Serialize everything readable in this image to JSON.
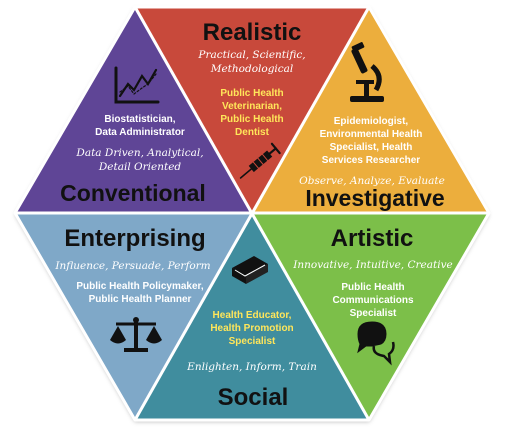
{
  "colors": {
    "realistic": "#c8493a",
    "investigative": "#ecae3e",
    "artistic": "#7bbf4a",
    "social": "#3f8d9e",
    "enterprising": "#7fa8c8",
    "conventional": "#5e4596",
    "border": "#ffffff",
    "title_text": "#111111",
    "job_highlight": "#ffe65a"
  },
  "sections": {
    "realistic": {
      "title": "Realistic",
      "traits": [
        "Practical, Scientific,",
        "Methodological"
      ],
      "jobs": [
        "Public Health",
        "Veterinarian,",
        "Public Health",
        "Dentist"
      ],
      "icon": "syringe-icon"
    },
    "investigative": {
      "title": "Investigative",
      "traits": [
        "Observe, Analyze, Evaluate"
      ],
      "jobs": [
        "Epidemiologist,",
        "Environmental Health",
        "Specialist, Health",
        "Services Researcher"
      ],
      "icon": "microscope-icon"
    },
    "artistic": {
      "title": "Artistic",
      "traits": [
        "Innovative, Intuitive, Creative"
      ],
      "jobs": [
        "Public Health",
        "Communications",
        "Specialist"
      ],
      "icon": "speech-bubbles-icon"
    },
    "social": {
      "title": "Social",
      "traits": [
        "Enlighten, Inform, Train"
      ],
      "jobs": [
        "Health Educator,",
        "Health Promotion",
        "Specialist"
      ],
      "icon": "book-icon"
    },
    "enterprising": {
      "title": "Enterprising",
      "traits": [
        "Influence, Persuade, Perform"
      ],
      "jobs": [
        "Public Health Policymaker,",
        "Public Health Planner"
      ],
      "icon": "scales-icon"
    },
    "conventional": {
      "title": "Conventional",
      "traits": [
        "Data Driven, Analytical,",
        "Detail Oriented"
      ],
      "jobs": [
        "Biostatistician,",
        "Data Administrator"
      ],
      "icon": "line-chart-icon"
    }
  }
}
